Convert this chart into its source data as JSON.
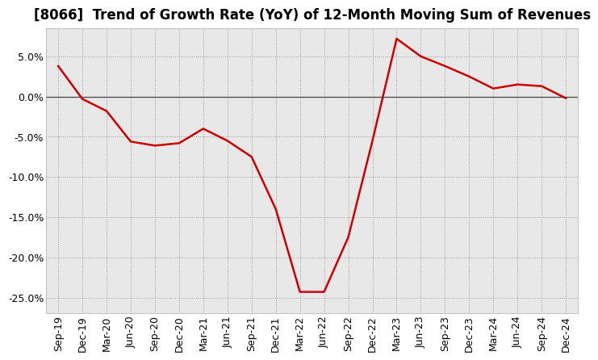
{
  "title": "[8066]  Trend of Growth Rate (YoY) of 12-Month Moving Sum of Revenues",
  "x_labels": [
    "Sep-19",
    "Dec-19",
    "Mar-20",
    "Jun-20",
    "Sep-20",
    "Dec-20",
    "Mar-21",
    "Jun-21",
    "Sep-21",
    "Dec-21",
    "Mar-22",
    "Jun-22",
    "Sep-22",
    "Dec-22",
    "Mar-23",
    "Jun-23",
    "Sep-23",
    "Dec-23",
    "Mar-24",
    "Jun-24",
    "Sep-24",
    "Dec-24"
  ],
  "y_values": [
    3.8,
    -0.3,
    -1.8,
    -5.6,
    -6.1,
    -5.8,
    -4.0,
    -5.5,
    -7.5,
    -14.0,
    -24.3,
    -24.3,
    -17.5,
    -5.5,
    7.2,
    5.0,
    3.8,
    2.5,
    1.0,
    1.5,
    1.3,
    -0.2
  ],
  "line_color": "#cc0000",
  "line_width": 1.8,
  "ylim": [
    -27,
    8.5
  ],
  "yticks": [
    -25,
    -20,
    -15,
    -10,
    -5,
    0,
    5
  ],
  "plot_bg_color": "#e8e8e8",
  "fig_bg_color": "#ffffff",
  "grid_color": "#999999",
  "title_fontsize": 12,
  "axis_fontsize": 9
}
